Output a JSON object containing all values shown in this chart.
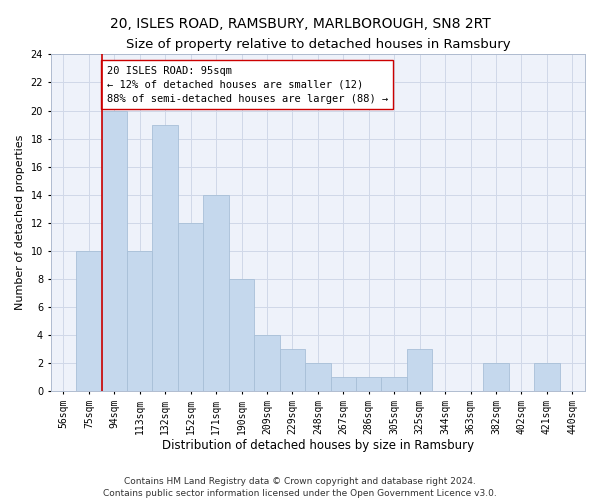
{
  "title": "20, ISLES ROAD, RAMSBURY, MARLBOROUGH, SN8 2RT",
  "subtitle": "Size of property relative to detached houses in Ramsbury",
  "xlabel": "Distribution of detached houses by size in Ramsbury",
  "ylabel": "Number of detached properties",
  "categories": [
    "56sqm",
    "75sqm",
    "94sqm",
    "113sqm",
    "132sqm",
    "152sqm",
    "171sqm",
    "190sqm",
    "209sqm",
    "229sqm",
    "248sqm",
    "267sqm",
    "286sqm",
    "305sqm",
    "325sqm",
    "344sqm",
    "363sqm",
    "382sqm",
    "402sqm",
    "421sqm",
    "440sqm"
  ],
  "values": [
    0,
    10,
    20,
    10,
    19,
    12,
    14,
    8,
    4,
    3,
    2,
    1,
    1,
    1,
    3,
    0,
    0,
    2,
    0,
    2,
    0
  ],
  "bar_color": "#c5d8ed",
  "bar_edge_color": "#a8bfd8",
  "reference_line_color": "#cc0000",
  "reference_line_x": 1.5,
  "annotation_text": "20 ISLES ROAD: 95sqm\n← 12% of detached houses are smaller (12)\n88% of semi-detached houses are larger (88) →",
  "ylim": [
    0,
    24
  ],
  "yticks": [
    0,
    2,
    4,
    6,
    8,
    10,
    12,
    14,
    16,
    18,
    20,
    22,
    24
  ],
  "grid_color": "#d0d8e8",
  "background_color": "#eef2fa",
  "footer_text": "Contains HM Land Registry data © Crown copyright and database right 2024.\nContains public sector information licensed under the Open Government Licence v3.0.",
  "title_fontsize": 10,
  "subtitle_fontsize": 9.5,
  "xlabel_fontsize": 8.5,
  "ylabel_fontsize": 8,
  "tick_fontsize": 7,
  "annotation_fontsize": 7.5,
  "footer_fontsize": 6.5
}
